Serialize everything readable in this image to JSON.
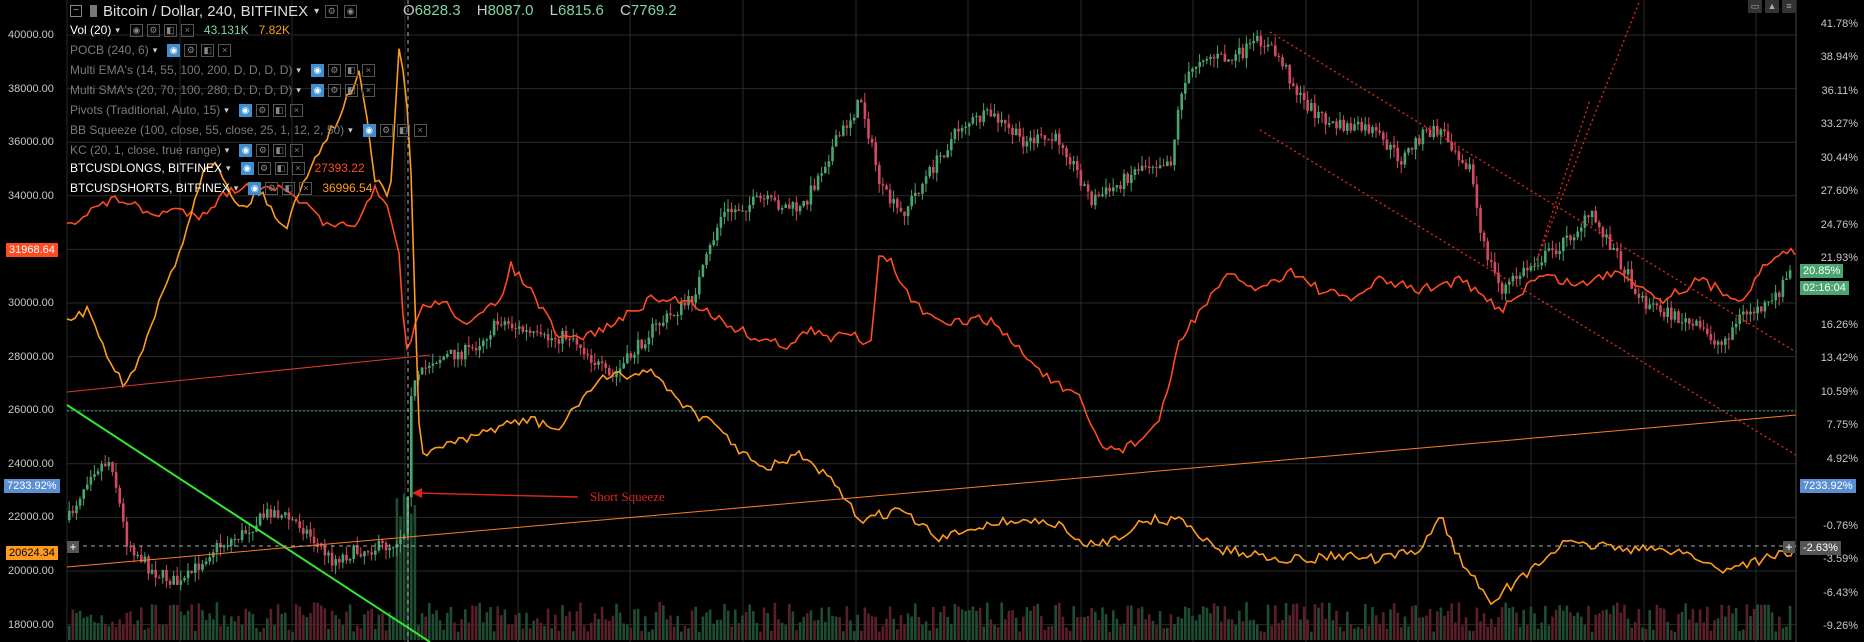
{
  "header": {
    "symbol_title": "Bitcoin / Dollar, 240, BITFINEX",
    "open_label": "O",
    "open": "6828.3",
    "high_label": "H",
    "high": "8087.0",
    "low_label": "L",
    "low": "6815.6",
    "close_label": "C",
    "close": "7769.2"
  },
  "indicators": [
    {
      "name": "Vol (20)",
      "value1": "43.131K",
      "value2": "7.82K",
      "color": "#ffffff"
    },
    {
      "name": "POCB (240, 6)",
      "color": "#7a7a7a"
    },
    {
      "name": "Multi EMA's (14, 55, 100, 200, D, D, D, D)",
      "color": "#7a7a7a"
    },
    {
      "name": "Multi SMA's (20, 70, 100, 280, D, D, D, D)",
      "color": "#7a7a7a"
    },
    {
      "name": "Pivots (Traditional, Auto, 15)",
      "color": "#7a7a7a"
    },
    {
      "name": "BB Squeeze (100, close, 55, close, 25, 1, 12, 2, 50)",
      "color": "#7a7a7a"
    },
    {
      "name": "KC (20, 1, close, true range)",
      "color": "#7a7a7a"
    },
    {
      "name": "BTCUSDLONGS, BITFINEX",
      "value1": "27393.22",
      "color": "#ffffff"
    },
    {
      "name": "BTCUSDSHORTS, BITFINEX",
      "value1": "36996.54",
      "color": "#ffffff"
    }
  ],
  "left_axis": {
    "labels": [
      "40000.00",
      "38000.00",
      "36000.00",
      "34000.00",
      "32000.00",
      "30000.00",
      "28000.00",
      "26000.00",
      "24000.00",
      "22000.00",
      "20000.00",
      "18000.00"
    ],
    "tag_longs": "31968.64",
    "tag_pct": "7233.92%",
    "tag_shorts": "20624.34"
  },
  "right_axis": {
    "labels": [
      "41.78%",
      "38.94%",
      "36.11%",
      "33.27%",
      "30.44%",
      "27.60%",
      "24.76%",
      "21.93%",
      "16.26%",
      "13.42%",
      "10.59%",
      "7.75%",
      "4.92%",
      "-0.76%",
      "-3.59%",
      "-6.43%",
      "-9.26%"
    ],
    "tag_current": "20.85%",
    "tag_countdown": "02:16:04",
    "tag_pct": "7233.92%",
    "tag_crosshair": "-2.63%"
  },
  "annotation": {
    "text": "Short Squeeze",
    "color": "#e0251f"
  },
  "colors": {
    "up": "#4aa56f",
    "down": "#d24a61",
    "longs": "#ff4b1f",
    "shorts": "#ff9b1f",
    "grid": "#2a2a2a"
  },
  "chart_data": {
    "type": "line",
    "title": "Bitcoin / Dollar, 240, BITFINEX",
    "series": [
      {
        "name": "BTCUSDLONGS, BITFINEX",
        "last": 27393.22
      },
      {
        "name": "BTCUSDSHORTS, BITFINEX",
        "last": 36996.54
      }
    ],
    "ylim_left": [
      18000,
      40000
    ],
    "ylim_right_pct": [
      -9.26,
      41.78
    ]
  }
}
